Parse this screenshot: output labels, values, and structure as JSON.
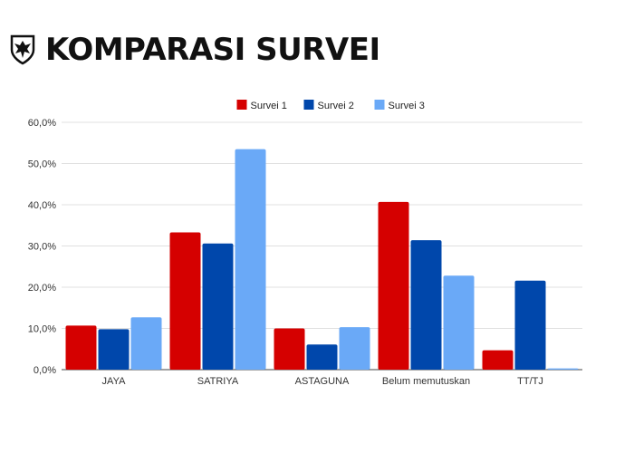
{
  "header": {
    "title": "KOMPARASI SURVEI",
    "logo_icon": "eagle-shield-icon"
  },
  "chart_data": {
    "type": "bar",
    "title": "",
    "xlabel": "",
    "ylabel": "",
    "categories": [
      "JAYA",
      "SATRIYA",
      "ASTAGUNA",
      "Belum memutuskan",
      "TT/TJ"
    ],
    "series": [
      {
        "name": "Survei 1",
        "color": "#d50000",
        "values": [
          10.7,
          33.3,
          10.0,
          40.7,
          4.7
        ]
      },
      {
        "name": "Survei 2",
        "color": "#0047ab",
        "values": [
          9.8,
          30.6,
          6.1,
          31.4,
          21.6
        ]
      },
      {
        "name": "Survei 3",
        "color": "#6aa9f7",
        "values": [
          12.7,
          53.5,
          10.3,
          22.8,
          0.3
        ]
      }
    ],
    "ylim": [
      0,
      60
    ],
    "yticks": [
      "0,0%",
      "10,0%",
      "20,0%",
      "30,0%",
      "40,0%",
      "50,0%",
      "60,0%"
    ],
    "grid": true,
    "legend_position": "top-center"
  }
}
